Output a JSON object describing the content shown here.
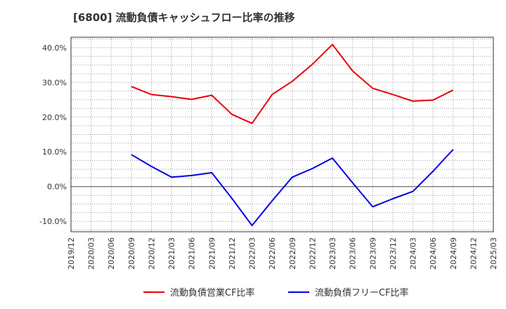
{
  "chart_data": {
    "type": "line",
    "title": "[6800]  流動負債キャッシュフロー比率の推移",
    "xlabel": "",
    "ylabel": "",
    "x_tick_labels": [
      "2019/12",
      "2020/03",
      "2020/06",
      "2020/09",
      "2020/12",
      "2021/03",
      "2021/06",
      "2021/09",
      "2021/12",
      "2022/03",
      "2022/06",
      "2022/09",
      "2022/12",
      "2023/03",
      "2023/06",
      "2023/09",
      "2023/12",
      "2024/03",
      "2024/06",
      "2024/09",
      "2024/12",
      "2025/03"
    ],
    "y_tick_labels": [
      "-10.0%",
      "0.0%",
      "10.0%",
      "20.0%",
      "30.0%",
      "40.0%"
    ],
    "y_ticks": [
      -10,
      0,
      10,
      20,
      30,
      40
    ],
    "ylim": [
      -13,
      43
    ],
    "grid": true,
    "legend_position": "bottom",
    "series": [
      {
        "name": "流動負債営業CF比率",
        "color": "#e8000b",
        "x": [
          "2020/09",
          "2020/12",
          "2021/03",
          "2021/06",
          "2021/09",
          "2021/12",
          "2022/03",
          "2022/06",
          "2022/09",
          "2022/12",
          "2023/03",
          "2023/06",
          "2023/09",
          "2023/12",
          "2024/03",
          "2024/06",
          "2024/09"
        ],
        "values": [
          28.8,
          26.5,
          25.9,
          25.1,
          26.3,
          20.8,
          18.2,
          26.5,
          30.3,
          35.2,
          40.9,
          33.3,
          28.3,
          26.5,
          24.6,
          24.9,
          27.8
        ]
      },
      {
        "name": "流動負債フリーCF比率",
        "color": "#0000e8",
        "x": [
          "2020/09",
          "2020/12",
          "2021/03",
          "2021/06",
          "2021/09",
          "2021/12",
          "2022/03",
          "2022/06",
          "2022/09",
          "2022/12",
          "2023/03",
          "2023/06",
          "2023/09",
          "2023/12",
          "2024/03",
          "2024/06",
          "2024/09"
        ],
        "values": [
          9.2,
          5.8,
          2.7,
          3.2,
          4.0,
          -3.4,
          -11.2,
          -4.1,
          2.7,
          5.2,
          8.2,
          1.1,
          -5.8,
          -3.5,
          -1.4,
          4.4,
          10.7
        ]
      }
    ]
  }
}
